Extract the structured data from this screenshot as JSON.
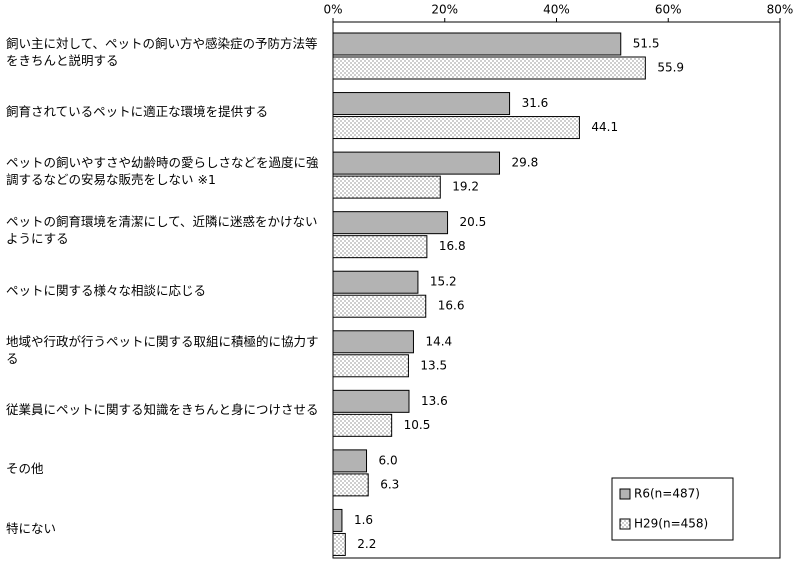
{
  "chart_data": {
    "type": "hbar",
    "categories": [
      "飼い主に対して、ペットの飼い方や感染症の予防方法等をきちんと説明する",
      "飼育されているペットに適正な環境を提供する",
      "ペットの飼いやすさや幼齢時の愛らしさなどを過度に強調するなどの安易な販売をしない ※1",
      "ペットの飼育環境を清潔にして、近隣に迷惑をかけないようにする",
      "ペットに関する様々な相談に応じる",
      "地域や行政が行うペットに関する取組に積極的に協力する",
      "従業員にペットに関する知識をきちんと身につけさせる",
      "その他",
      "特にない"
    ],
    "series": [
      {
        "name": "R6(n=487)",
        "color": "#b3b3b3",
        "values": [
          51.5,
          31.6,
          29.8,
          20.5,
          15.2,
          14.4,
          13.6,
          6.0,
          1.6
        ],
        "value_labels": [
          "51.5",
          "31.6",
          "29.8",
          "20.5",
          "15.2",
          "14.4",
          "13.6",
          "6.0",
          "1.6"
        ]
      },
      {
        "name": "H29(n=458)",
        "color": "#ffffff",
        "values": [
          55.9,
          44.1,
          19.2,
          16.8,
          16.6,
          13.5,
          10.5,
          6.3,
          2.2
        ],
        "value_labels": [
          "55.9",
          "44.1",
          "19.2",
          "16.8",
          "16.6",
          "13.5",
          "10.5",
          "6.3",
          "2.2"
        ]
      }
    ],
    "xlim": [
      0,
      80
    ],
    "xticks": [
      {
        "value": 0,
        "label": "0%"
      },
      {
        "value": 20,
        "label": "20%"
      },
      {
        "value": 40,
        "label": "40%"
      },
      {
        "value": 60,
        "label": "60%"
      },
      {
        "value": 80,
        "label": "80%"
      }
    ],
    "legend": "lower right"
  }
}
